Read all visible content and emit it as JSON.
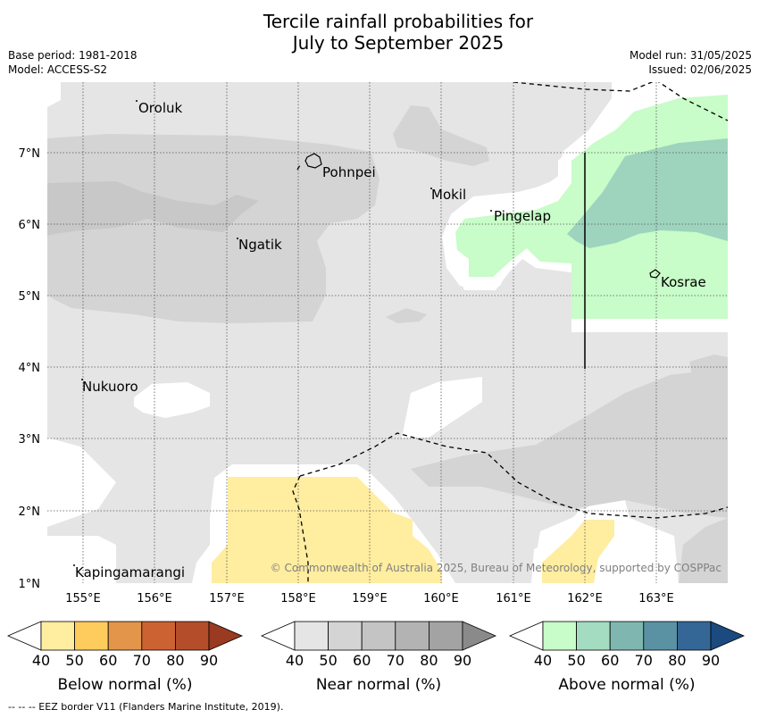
{
  "title": {
    "line1": "Tercile rainfall probabilities for",
    "line2": "July to September 2025"
  },
  "meta": {
    "base_period": "Base period: 1981-2018",
    "model": "Model: ACCESS-S2",
    "model_run": "Model run: 31/05/2025",
    "issued": "Issued: 02/06/2025"
  },
  "map": {
    "lon_ticks": [
      "155°E",
      "156°E",
      "157°E",
      "158°E",
      "159°E",
      "160°E",
      "161°E",
      "162°E",
      "163°E"
    ],
    "lat_ticks": [
      "1°N",
      "2°N",
      "3°N",
      "4°N",
      "5°N",
      "6°N",
      "7°N"
    ],
    "places": [
      "Oroluk",
      "Pohnpei",
      "Mokil",
      "Pingelap",
      "Ngatik",
      "Kosrae",
      "Nukuoro",
      "Kapingamarangi"
    ],
    "copyright": "© Commonwealth of Australia 2025, Bureau of Meteorology, supported by COSPPac",
    "colors": {
      "near_40": "#e5e5e5",
      "near_50": "#d4d4d4",
      "near_60": "#c8c8c8",
      "above_40": "#c8fcc8",
      "above_50": "#9ed4bd",
      "below_40": "#ffeda0"
    }
  },
  "legends": [
    {
      "title": "Below normal (%)",
      "ticks": [
        "40",
        "50",
        "60",
        "70",
        "80",
        "90"
      ],
      "colors": [
        "#ffffff",
        "#ffeda0",
        "#fecc5c",
        "#e3954a",
        "#cc6232",
        "#b44e2a",
        "#9a3a20"
      ]
    },
    {
      "title": "Near normal (%)",
      "ticks": [
        "40",
        "50",
        "60",
        "70",
        "80",
        "90"
      ],
      "colors": [
        "#ffffff",
        "#e5e5e5",
        "#d4d4d4",
        "#c4c4c4",
        "#b3b3b3",
        "#a3a3a3",
        "#8a8a8a"
      ]
    },
    {
      "title": "Above normal (%)",
      "ticks": [
        "40",
        "50",
        "60",
        "70",
        "80",
        "90"
      ],
      "colors": [
        "#ffffff",
        "#c8fcc8",
        "#a3dcc0",
        "#7fb7b0",
        "#5a92a4",
        "#356796",
        "#1a4a80"
      ]
    }
  ],
  "footer": "--  --  -- EEZ border V11 (Flanders Marine Institute, 2019)."
}
